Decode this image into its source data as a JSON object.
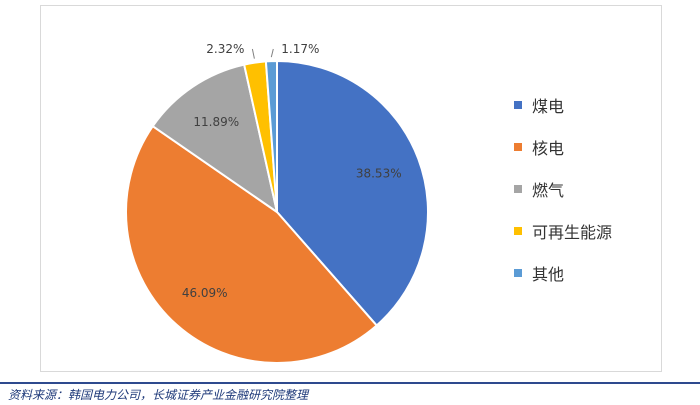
{
  "chart_data": {
    "type": "pie",
    "title": "",
    "categories": [
      "煤电",
      "核电",
      "燃气",
      "可再生能源",
      "其他"
    ],
    "values": [
      38.53,
      46.09,
      11.89,
      2.32,
      1.17
    ],
    "value_labels": [
      "38.53%",
      "46.09%",
      "11.89%",
      "2.32%",
      "1.17%"
    ],
    "colors": [
      "#4472c4",
      "#ed7d31",
      "#a5a5a5",
      "#ffc000",
      "#5b9bd5"
    ],
    "legend_position": "right",
    "start_angle": "12 o'clock, clockwise"
  },
  "source_note": "资料来源：韩国电力公司，长城证券产业金融研究院整理"
}
